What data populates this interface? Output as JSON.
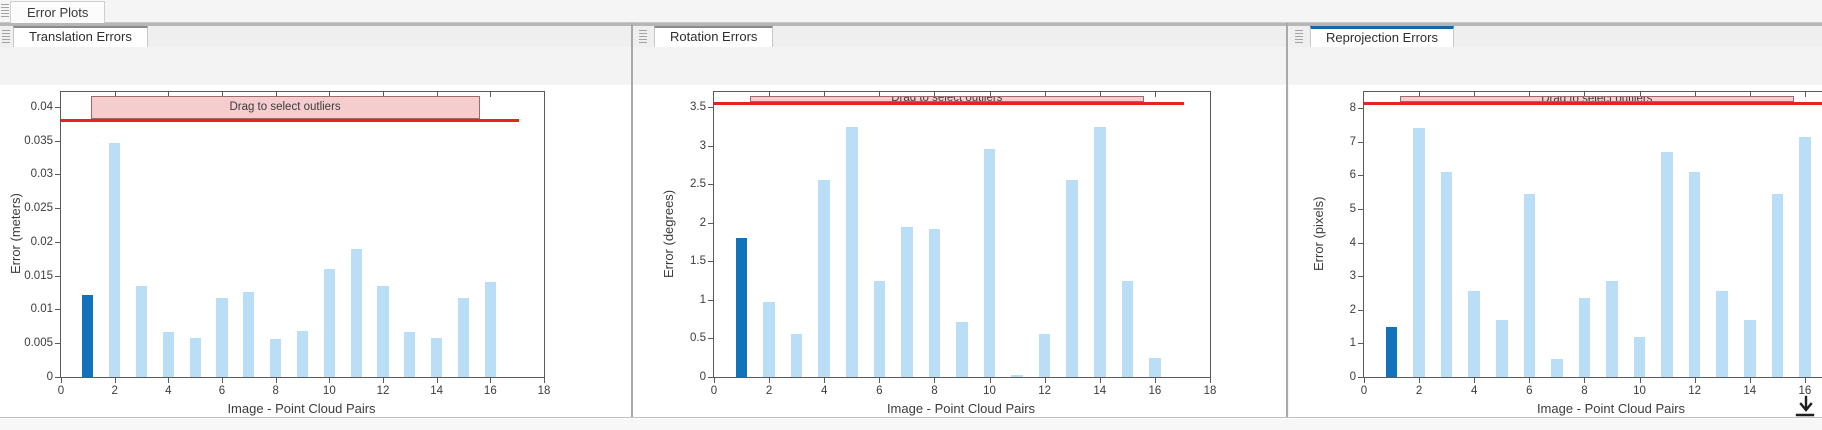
{
  "app_tab": {
    "label": "Error Plots"
  },
  "icons": {
    "grip": "panel-grip-icon",
    "export": "export-plot-icon"
  },
  "colors": {
    "bar_light": "#BBDEF7",
    "bar_selected": "#1272BB",
    "threshold_line": "#E5231F",
    "band_fill": "#F6CDCF",
    "band_border": "#9C6A6A",
    "active_tab_accent": "#1466A8",
    "inactive_tab_accent": "#8A8A8A",
    "axis_color": "#5A5A5A"
  },
  "chart_data": [
    {
      "type": "bar",
      "tab": "Translation Errors",
      "xlabel": "Image - Point Cloud Pairs",
      "ylabel": "Error (meters)",
      "x": [
        1,
        2,
        3,
        4,
        5,
        6,
        7,
        8,
        9,
        10,
        11,
        12,
        13,
        14,
        15,
        16
      ],
      "values": [
        0.0121,
        0.0347,
        0.0135,
        0.0067,
        0.0058,
        0.0117,
        0.0126,
        0.0056,
        0.0068,
        0.016,
        0.0189,
        0.0135,
        0.0067,
        0.0058,
        0.0117,
        0.014
      ],
      "highlighted_pair": 1,
      "threshold": 0.038,
      "threshold_x_end": 17.05,
      "band_label": "Drag to select outliers",
      "band_x": [
        1.1,
        15.6
      ],
      "xlim": [
        0,
        18
      ],
      "ylim": [
        0,
        0.0422
      ],
      "xticks": [
        0,
        2,
        4,
        6,
        8,
        10,
        12,
        14,
        16,
        18
      ],
      "yticks": [
        0,
        0.005,
        0.01,
        0.015,
        0.02,
        0.025,
        0.03,
        0.035,
        0.04
      ]
    },
    {
      "type": "bar",
      "tab": "Rotation Errors",
      "xlabel": "Image - Point Cloud Pairs",
      "ylabel": "Error (degrees)",
      "x": [
        1,
        2,
        3,
        4,
        5,
        6,
        7,
        8,
        9,
        10,
        11,
        12,
        13,
        14,
        15,
        16
      ],
      "values": [
        1.8,
        0.98,
        0.56,
        2.56,
        3.24,
        1.25,
        1.95,
        1.92,
        0.71,
        2.96,
        0.02,
        0.56,
        2.56,
        3.24,
        1.25,
        0.25
      ],
      "highlighted_pair": 1,
      "threshold": 3.56,
      "threshold_x_end": 17.05,
      "band_label": "Drag to select outliers",
      "band_x": [
        1.3,
        15.6
      ],
      "xlim": [
        0,
        18
      ],
      "ylim": [
        0,
        3.7
      ],
      "xticks": [
        0,
        2,
        4,
        6,
        8,
        10,
        12,
        14,
        16,
        18
      ],
      "yticks": [
        0,
        0.5,
        1,
        1.5,
        2,
        2.5,
        3,
        3.5
      ]
    },
    {
      "type": "bar",
      "tab": "Reprojection Errors",
      "xlabel": "Image - Point Cloud Pairs",
      "ylabel": "Error (pixels)",
      "x": [
        1,
        2,
        3,
        4,
        5,
        6,
        7,
        8,
        9,
        10,
        11,
        12,
        13,
        14,
        15,
        16
      ],
      "values": [
        1.5,
        7.4,
        6.1,
        2.55,
        1.7,
        5.45,
        0.55,
        2.35,
        2.85,
        1.2,
        6.7,
        6.1,
        2.55,
        1.7,
        5.45,
        7.15
      ],
      "highlighted_pair": 1,
      "threshold": 8.15,
      "threshold_x_end": 17.05,
      "band_label": "Drag to select outliers",
      "band_x": [
        1.3,
        15.6
      ],
      "xlim": [
        0,
        18
      ],
      "ylim": [
        0,
        8.48
      ],
      "xticks": [
        0,
        2,
        4,
        6,
        8,
        10,
        12,
        14,
        16,
        18
      ],
      "yticks": [
        0,
        1,
        2,
        3,
        4,
        5,
        6,
        7,
        8
      ]
    }
  ]
}
